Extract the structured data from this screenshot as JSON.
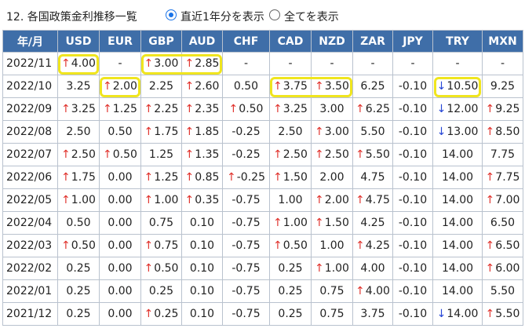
{
  "header": {
    "title": "12. 各国政策金利推移一覧",
    "radio_1y": "直近1年分を表示",
    "radio_all": "全てを表示",
    "selected": "radio_1y"
  },
  "colors": {
    "header_bg": "#3f6ea8",
    "up": "#e0302a",
    "down": "#2646d6",
    "highlight": "#f0e51e"
  },
  "table": {
    "columns": [
      "年/月",
      "USD",
      "EUR",
      "GBP",
      "AUD",
      "CHF",
      "CAD",
      "NZD",
      "ZAR",
      "JPY",
      "TRY",
      "MXN"
    ],
    "rows": [
      {
        "month": "2022/11",
        "cells": [
          {
            "v": "4.00",
            "d": "up",
            "hl": true
          },
          {
            "v": "-"
          },
          {
            "v": "3.00",
            "d": "up",
            "hl": true
          },
          {
            "v": "2.85",
            "d": "up",
            "hl": true
          },
          {
            "v": "-"
          },
          {
            "v": "-"
          },
          {
            "v": "-"
          },
          {
            "v": "-"
          },
          {
            "v": "-"
          },
          {
            "v": "-"
          },
          {
            "v": "-"
          }
        ]
      },
      {
        "month": "2022/10",
        "cells": [
          {
            "v": "3.25"
          },
          {
            "v": "2.00",
            "d": "up",
            "hl": true
          },
          {
            "v": "2.25"
          },
          {
            "v": "2.60",
            "d": "up"
          },
          {
            "v": "0.50"
          },
          {
            "v": "3.75",
            "d": "up",
            "hl": true
          },
          {
            "v": "3.50",
            "d": "up",
            "hl": true
          },
          {
            "v": "6.25"
          },
          {
            "v": "-0.10"
          },
          {
            "v": "10.50",
            "d": "down",
            "hl": true
          },
          {
            "v": "9.25"
          }
        ]
      },
      {
        "month": "2022/09",
        "cells": [
          {
            "v": "3.25",
            "d": "up"
          },
          {
            "v": "1.25",
            "d": "up"
          },
          {
            "v": "2.25",
            "d": "up"
          },
          {
            "v": "2.35",
            "d": "up"
          },
          {
            "v": "0.50",
            "d": "up"
          },
          {
            "v": "3.25",
            "d": "up"
          },
          {
            "v": "3.00"
          },
          {
            "v": "6.25",
            "d": "up"
          },
          {
            "v": "-0.10"
          },
          {
            "v": "12.00",
            "d": "down"
          },
          {
            "v": "9.25",
            "d": "up"
          }
        ]
      },
      {
        "month": "2022/08",
        "cells": [
          {
            "v": "2.50"
          },
          {
            "v": "0.50"
          },
          {
            "v": "1.75",
            "d": "up"
          },
          {
            "v": "1.85",
            "d": "up"
          },
          {
            "v": "-0.25"
          },
          {
            "v": "2.50"
          },
          {
            "v": "3.00",
            "d": "up"
          },
          {
            "v": "5.50"
          },
          {
            "v": "-0.10"
          },
          {
            "v": "13.00",
            "d": "down"
          },
          {
            "v": "8.50",
            "d": "up"
          }
        ]
      },
      {
        "month": "2022/07",
        "cells": [
          {
            "v": "2.50",
            "d": "up"
          },
          {
            "v": "0.50",
            "d": "up"
          },
          {
            "v": "1.25"
          },
          {
            "v": "1.35",
            "d": "up"
          },
          {
            "v": "-0.25"
          },
          {
            "v": "2.50",
            "d": "up"
          },
          {
            "v": "2.50",
            "d": "up"
          },
          {
            "v": "5.50",
            "d": "up"
          },
          {
            "v": "-0.10"
          },
          {
            "v": "14.00"
          },
          {
            "v": "7.75"
          }
        ]
      },
      {
        "month": "2022/06",
        "cells": [
          {
            "v": "1.75",
            "d": "up"
          },
          {
            "v": "0.00"
          },
          {
            "v": "1.25",
            "d": "up"
          },
          {
            "v": "0.85",
            "d": "up"
          },
          {
            "v": "-0.25",
            "d": "up"
          },
          {
            "v": "1.50",
            "d": "up"
          },
          {
            "v": "2.00"
          },
          {
            "v": "4.75"
          },
          {
            "v": "-0.10"
          },
          {
            "v": "14.00"
          },
          {
            "v": "7.75",
            "d": "up"
          }
        ]
      },
      {
        "month": "2022/05",
        "cells": [
          {
            "v": "1.00",
            "d": "up"
          },
          {
            "v": "0.00"
          },
          {
            "v": "1.00",
            "d": "up"
          },
          {
            "v": "0.35",
            "d": "up"
          },
          {
            "v": "-0.75"
          },
          {
            "v": "1.00"
          },
          {
            "v": "2.00",
            "d": "up"
          },
          {
            "v": "4.75",
            "d": "up"
          },
          {
            "v": "-0.10"
          },
          {
            "v": "14.00"
          },
          {
            "v": "7.00",
            "d": "up"
          }
        ]
      },
      {
        "month": "2022/04",
        "cells": [
          {
            "v": "0.50"
          },
          {
            "v": "0.00"
          },
          {
            "v": "0.75"
          },
          {
            "v": "0.10"
          },
          {
            "v": "-0.75"
          },
          {
            "v": "1.00",
            "d": "up"
          },
          {
            "v": "1.50",
            "d": "up"
          },
          {
            "v": "4.25"
          },
          {
            "v": "-0.10"
          },
          {
            "v": "14.00"
          },
          {
            "v": "6.50"
          }
        ]
      },
      {
        "month": "2022/03",
        "cells": [
          {
            "v": "0.50",
            "d": "up"
          },
          {
            "v": "0.00"
          },
          {
            "v": "0.75",
            "d": "up"
          },
          {
            "v": "0.10"
          },
          {
            "v": "-0.75"
          },
          {
            "v": "0.50",
            "d": "up"
          },
          {
            "v": "1.00"
          },
          {
            "v": "4.25",
            "d": "up"
          },
          {
            "v": "-0.10"
          },
          {
            "v": "14.00"
          },
          {
            "v": "6.50",
            "d": "up"
          }
        ]
      },
      {
        "month": "2022/02",
        "cells": [
          {
            "v": "0.25"
          },
          {
            "v": "0.00"
          },
          {
            "v": "0.50",
            "d": "up"
          },
          {
            "v": "0.10"
          },
          {
            "v": "-0.75"
          },
          {
            "v": "0.25"
          },
          {
            "v": "1.00",
            "d": "up"
          },
          {
            "v": "4.00"
          },
          {
            "v": "-0.10"
          },
          {
            "v": "14.00"
          },
          {
            "v": "6.00",
            "d": "up"
          }
        ]
      },
      {
        "month": "2022/01",
        "cells": [
          {
            "v": "0.25"
          },
          {
            "v": "0.00"
          },
          {
            "v": "0.25"
          },
          {
            "v": "0.10"
          },
          {
            "v": "-0.75"
          },
          {
            "v": "0.25"
          },
          {
            "v": "0.75"
          },
          {
            "v": "4.00",
            "d": "up"
          },
          {
            "v": "-0.10"
          },
          {
            "v": "14.00"
          },
          {
            "v": "5.50"
          }
        ]
      },
      {
        "month": "2021/12",
        "cells": [
          {
            "v": "0.25"
          },
          {
            "v": "0.00"
          },
          {
            "v": "0.25",
            "d": "up"
          },
          {
            "v": "0.10"
          },
          {
            "v": "-0.75"
          },
          {
            "v": "0.25"
          },
          {
            "v": "0.75"
          },
          {
            "v": "3.75"
          },
          {
            "v": "-0.10"
          },
          {
            "v": "14.00",
            "d": "down"
          },
          {
            "v": "5.50",
            "d": "up"
          }
        ]
      }
    ]
  }
}
